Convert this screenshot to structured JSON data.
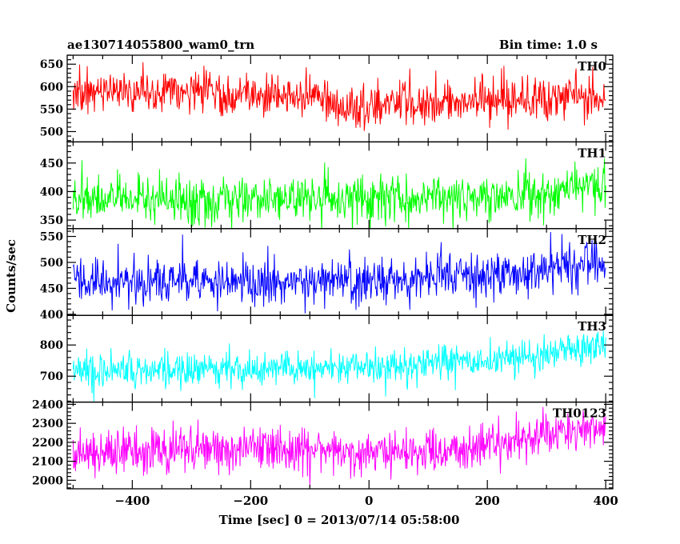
{
  "header": {
    "left_title": "ae130714055800_wam0_trn",
    "right_title": "Bin time: 1.0 s"
  },
  "chart_data": {
    "type": "line",
    "xlabel": "Time [sec] 0 = 2013/07/14 05:58:00",
    "ylabel": "Counts/sec",
    "xlim": [
      -510,
      412
    ],
    "x_ticks": [
      -400,
      -200,
      0,
      200,
      400
    ],
    "x_tick_labels": [
      "−400",
      "−200",
      "0",
      "200",
      "400"
    ],
    "x_data_range": [
      -500,
      400
    ],
    "bin_time": 1.0,
    "grid": false,
    "series": [
      {
        "name": "TH0",
        "color": "#ff0000",
        "ylim": [
          477,
          670
        ],
        "y_ticks": [
          500,
          550,
          600,
          650
        ],
        "mean_profile": [
          [
            -500,
            588
          ],
          [
            -80,
            578
          ],
          [
            -60,
            555
          ],
          [
            100,
            560
          ],
          [
            400,
            578
          ]
        ],
        "noise_sd": 24
      },
      {
        "name": "TH1",
        "color": "#00ff00",
        "ylim": [
          335,
          487
        ],
        "y_ticks": [
          350,
          400,
          450
        ],
        "mean_profile": [
          [
            -500,
            385
          ],
          [
            0,
            387
          ],
          [
            250,
            392
          ],
          [
            400,
            412
          ]
        ],
        "noise_sd": 20
      },
      {
        "name": "TH2",
        "color": "#0000ff",
        "ylim": [
          398,
          565
        ],
        "y_ticks": [
          400,
          450,
          500,
          550
        ],
        "mean_profile": [
          [
            -500,
            462
          ],
          [
            0,
            465
          ],
          [
            200,
            475
          ],
          [
            400,
            500
          ]
        ],
        "noise_sd": 22
      },
      {
        "name": "TH3",
        "color": "#00ffff",
        "ylim": [
          617,
          895
        ],
        "y_ticks": [
          700,
          800
        ],
        "mean_profile": [
          [
            -500,
            720
          ],
          [
            0,
            730
          ],
          [
            200,
            748
          ],
          [
            400,
            800
          ]
        ],
        "noise_sd": 28
      },
      {
        "name": "TH0123",
        "color": "#ff00ff",
        "ylim": [
          1955,
          2412
        ],
        "y_ticks": [
          2000,
          2100,
          2200,
          2300,
          2400
        ],
        "mean_profile": [
          [
            -500,
            2155
          ],
          [
            -100,
            2170
          ],
          [
            0,
            2140
          ],
          [
            200,
            2170
          ],
          [
            250,
            2210
          ],
          [
            320,
            2255
          ],
          [
            400,
            2290
          ]
        ],
        "noise_sd": 58
      }
    ]
  }
}
